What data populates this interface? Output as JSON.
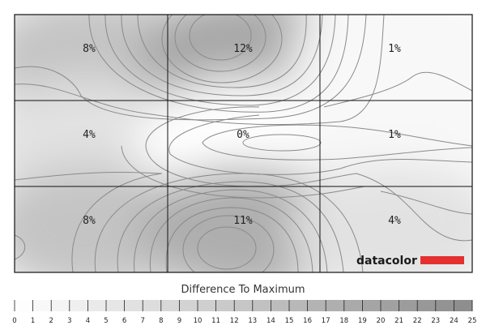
{
  "chart_data": {
    "type": "heatmap",
    "rows": 3,
    "cols": 3,
    "values": [
      [
        "8%",
        "12%",
        "1%"
      ],
      [
        "4%",
        "0%",
        "1%"
      ],
      [
        "8%",
        "11%",
        "4%"
      ]
    ],
    "numeric_values": [
      [
        8,
        12,
        1
      ],
      [
        4,
        0,
        1
      ],
      [
        8,
        11,
        4
      ]
    ],
    "scale": {
      "title": "Difference To Maximum",
      "min": 0,
      "max": 25,
      "ticks": [
        "0",
        "1",
        "2",
        "3",
        "4",
        "5",
        "6",
        "7",
        "8",
        "9",
        "10",
        "11",
        "12",
        "13",
        "14",
        "15",
        "16",
        "17",
        "18",
        "19",
        "20",
        "21",
        "22",
        "23",
        "24",
        "25"
      ]
    },
    "colors": {
      "low": "#ffffff",
      "high": "#8c8c8c",
      "grid": "#111111",
      "contour": "#8a8a8a",
      "brand_bar": "#e53030"
    }
  },
  "brand": {
    "name": "datacolor"
  }
}
